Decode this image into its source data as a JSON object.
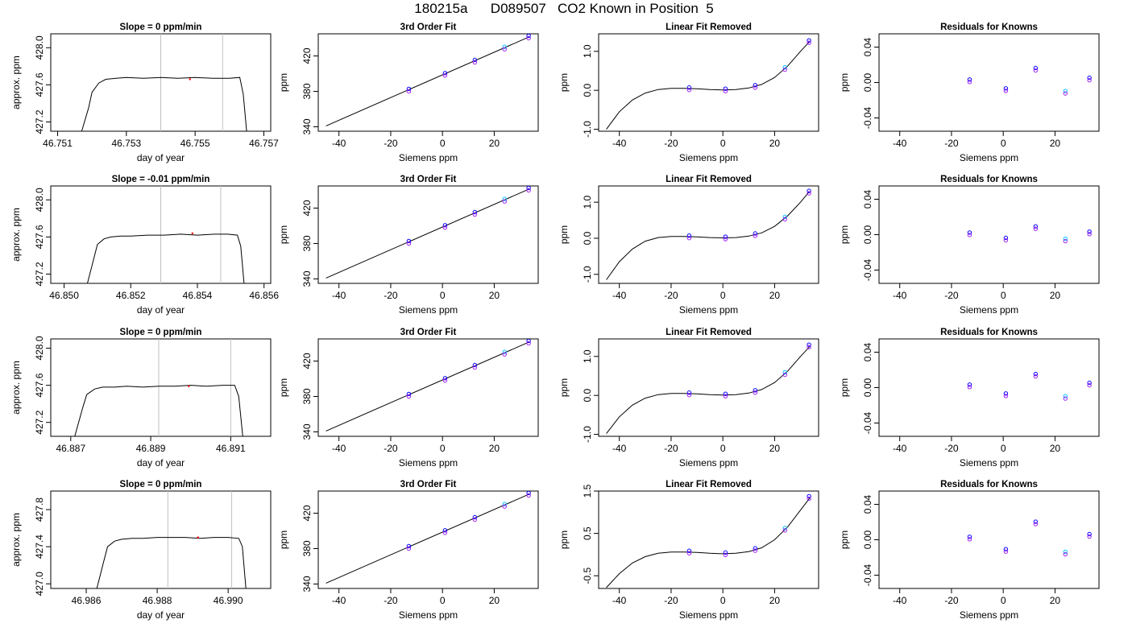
{
  "title": "180215a      D089507   CO2 Known in Position  5",
  "colors": {
    "frame": "#000000",
    "window_line": "#c0c0c0",
    "point_a": "#0000ff",
    "point_b": "#a020f0",
    "point_c": "#00bfff",
    "point_d": "#ff69b4",
    "ref_mark": "#ff0000"
  },
  "chart_data": [
    {
      "type": "line",
      "title": "Slope =  0  ppm/min",
      "xlabel": "day of year",
      "ylabel": "approx. ppm",
      "xlim": [
        46.7508,
        46.7572
      ],
      "ylim": [
        427.1,
        428.15
      ],
      "xticks": [
        "46.751",
        "46.753",
        "46.755",
        "46.757"
      ],
      "yticks": [
        "427.2",
        "427.6",
        "428.0"
      ],
      "window": [
        46.754,
        46.7558
      ],
      "ref_point": [
        46.75485,
        427.66
      ],
      "x": [
        46.7517,
        46.7519,
        46.752,
        46.7522,
        46.7524,
        46.7527,
        46.753,
        46.7535,
        46.754,
        46.7545,
        46.755,
        46.7555,
        46.756,
        46.7563,
        46.7564,
        46.7565
      ],
      "y": [
        427.1,
        427.35,
        427.52,
        427.62,
        427.66,
        427.67,
        427.68,
        427.67,
        427.68,
        427.67,
        427.68,
        427.67,
        427.67,
        427.68,
        427.5,
        427.1
      ]
    },
    {
      "type": "scatter",
      "title": "3rd Order Fit",
      "xlabel": "Siemens ppm",
      "ylabel": "ppm",
      "xlim": [
        -48,
        37
      ],
      "ylim": [
        335,
        445
      ],
      "xticks": [
        -40,
        -20,
        0,
        20
      ],
      "yticks": [
        340,
        380,
        420
      ],
      "fit_x": [
        -45,
        33.5
      ],
      "fit_y": [
        341.0,
        441.5
      ],
      "points_x": [
        -13,
        1,
        12.5,
        24,
        33.3
      ],
      "points_y": [
        381.4,
        399.3,
        414.1,
        428.9,
        441.4
      ]
    },
    {
      "type": "scatter",
      "title": "Linear Fit Removed",
      "xlabel": "Siemens ppm",
      "ylabel": "ppm",
      "xlim": [
        -48,
        37
      ],
      "ylim": [
        -1.05,
        1.45
      ],
      "xticks": [
        -40,
        -20,
        0,
        20
      ],
      "yticks": [
        "-1.0",
        "0.0",
        "1.0"
      ],
      "curve_x": [
        -45,
        -40,
        -35,
        -30,
        -25,
        -20,
        -15,
        -10,
        -5,
        0,
        5,
        10,
        15,
        20,
        25,
        30,
        33.5
      ],
      "curve_y": [
        -1.0,
        -0.55,
        -0.25,
        -0.07,
        0.02,
        0.05,
        0.05,
        0.04,
        0.02,
        0.01,
        0.02,
        0.06,
        0.15,
        0.33,
        0.62,
        1.0,
        1.25
      ],
      "points_x": [
        -13,
        1,
        12.5,
        24,
        33.3
      ],
      "points_y": [
        0.04,
        0.01,
        0.1,
        0.56,
        1.25
      ]
    },
    {
      "type": "scatter",
      "title": "Residuals for Knowns",
      "xlabel": "Siemens ppm",
      "ylabel": "ppm",
      "xlim": [
        -48,
        37
      ],
      "ylim": [
        -0.055,
        0.055
      ],
      "xticks": [
        -40,
        -20,
        0,
        20
      ],
      "yticks": [
        "-0.04",
        "0.00",
        "0.04"
      ],
      "points_x": [
        -13,
        1,
        12.5,
        24,
        33.3
      ],
      "points_y": [
        0.002,
        -0.008,
        0.015,
        -0.011,
        0.004
      ]
    },
    {
      "type": "line",
      "title": "Slope =  -0.01  ppm/min",
      "xlabel": "day of year",
      "ylabel": "approx. ppm",
      "xlim": [
        46.8496,
        46.8562
      ],
      "ylim": [
        427.1,
        428.15
      ],
      "xticks": [
        "46.850",
        "46.852",
        "46.854",
        "46.856"
      ],
      "yticks": [
        "427.2",
        "427.6",
        "428.0"
      ],
      "window": [
        46.8529,
        46.8547
      ],
      "ref_point": [
        46.85385,
        427.64
      ],
      "x": [
        46.8507,
        46.8509,
        46.851,
        46.8512,
        46.8514,
        46.8517,
        46.852,
        46.8525,
        46.853,
        46.8535,
        46.854,
        46.8545,
        46.8549,
        46.8552,
        46.8553,
        46.8554
      ],
      "y": [
        427.1,
        427.38,
        427.52,
        427.58,
        427.6,
        427.61,
        427.61,
        427.62,
        427.62,
        427.63,
        427.62,
        427.63,
        427.63,
        427.62,
        427.5,
        427.1
      ]
    },
    {
      "type": "scatter",
      "title": "3rd Order Fit",
      "xlabel": "Siemens ppm",
      "ylabel": "ppm",
      "xlim": [
        -48,
        37
      ],
      "ylim": [
        335,
        445
      ],
      "xticks": [
        -40,
        -20,
        0,
        20
      ],
      "yticks": [
        340,
        380,
        420
      ],
      "fit_x": [
        -45,
        33.5
      ],
      "fit_y": [
        341.0,
        441.5
      ],
      "points_x": [
        -13,
        1,
        12.5,
        24,
        33.3
      ],
      "points_y": [
        381.4,
        399.3,
        414.1,
        428.9,
        441.4
      ]
    },
    {
      "type": "scatter",
      "title": "Linear Fit Removed",
      "xlabel": "Siemens ppm",
      "ylabel": "ppm",
      "xlim": [
        -48,
        37
      ],
      "ylim": [
        -1.25,
        1.45
      ],
      "xticks": [
        -40,
        -20,
        0,
        20
      ],
      "yticks": [
        "-1.0",
        "0.0",
        "1.0"
      ],
      "curve_x": [
        -45,
        -40,
        -35,
        -30,
        -25,
        -20,
        -15,
        -10,
        -5,
        0,
        5,
        10,
        15,
        20,
        25,
        30,
        33.5
      ],
      "curve_y": [
        -1.15,
        -0.65,
        -0.3,
        -0.08,
        0.02,
        0.05,
        0.05,
        0.04,
        0.02,
        0.01,
        0.02,
        0.06,
        0.15,
        0.33,
        0.62,
        1.0,
        1.3
      ],
      "points_x": [
        -13,
        1,
        12.5,
        24,
        33.3
      ],
      "points_y": [
        0.04,
        0.01,
        0.1,
        0.56,
        1.28
      ]
    },
    {
      "type": "scatter",
      "title": "Residuals for Knowns",
      "xlabel": "Siemens ppm",
      "ylabel": "ppm",
      "xlim": [
        -48,
        37
      ],
      "ylim": [
        -0.055,
        0.055
      ],
      "xticks": [
        -40,
        -20,
        0,
        20
      ],
      "yticks": [
        "-0.04",
        "0.00",
        "0.04"
      ],
      "points_x": [
        -13,
        1,
        12.5,
        24,
        33.3
      ],
      "points_y": [
        0.001,
        -0.005,
        0.008,
        -0.006,
        0.002
      ]
    },
    {
      "type": "line",
      "title": "Slope =  0  ppm/min",
      "xlabel": "day of year",
      "ylabel": "approx. ppm",
      "xlim": [
        46.8865,
        46.892
      ],
      "ylim": [
        427.05,
        428.1
      ],
      "xticks": [
        "46.887",
        "46.889",
        "46.891"
      ],
      "yticks": [
        "427.2",
        "427.6",
        "428.0"
      ],
      "window": [
        46.8892,
        46.891
      ],
      "ref_point": [
        46.88995,
        427.59
      ],
      "x": [
        46.8871,
        46.8873,
        46.8874,
        46.8876,
        46.8878,
        46.8881,
        46.8884,
        46.8888,
        46.8892,
        46.8896,
        46.89,
        46.8904,
        46.8908,
        46.8911,
        46.8912,
        46.8913
      ],
      "y": [
        427.05,
        427.36,
        427.5,
        427.56,
        427.58,
        427.58,
        427.59,
        427.58,
        427.59,
        427.59,
        427.6,
        427.59,
        427.6,
        427.6,
        427.48,
        427.05
      ]
    },
    {
      "type": "scatter",
      "title": "3rd Order Fit",
      "xlabel": "Siemens ppm",
      "ylabel": "ppm",
      "xlim": [
        -48,
        37
      ],
      "ylim": [
        335,
        445
      ],
      "xticks": [
        -40,
        -20,
        0,
        20
      ],
      "yticks": [
        340,
        380,
        420
      ],
      "fit_x": [
        -45,
        33.5
      ],
      "fit_y": [
        341.0,
        441.5
      ],
      "points_x": [
        -13,
        1,
        12.5,
        24,
        33.3
      ],
      "points_y": [
        381.4,
        399.3,
        414.1,
        428.9,
        441.4
      ]
    },
    {
      "type": "scatter",
      "title": "Linear Fit Removed",
      "xlabel": "Siemens ppm",
      "ylabel": "ppm",
      "xlim": [
        -48,
        37
      ],
      "ylim": [
        -1.05,
        1.45
      ],
      "xticks": [
        -40,
        -20,
        0,
        20
      ],
      "yticks": [
        "-1.0",
        "0.0",
        "1.0"
      ],
      "curve_x": [
        -45,
        -40,
        -35,
        -30,
        -25,
        -20,
        -15,
        -10,
        -5,
        0,
        5,
        10,
        15,
        20,
        25,
        30,
        33.5
      ],
      "curve_y": [
        -0.98,
        -0.55,
        -0.25,
        -0.07,
        0.02,
        0.05,
        0.05,
        0.04,
        0.02,
        0.01,
        0.02,
        0.06,
        0.15,
        0.33,
        0.62,
        1.0,
        1.25
      ],
      "points_x": [
        -13,
        1,
        12.5,
        24,
        33.3
      ],
      "points_y": [
        0.04,
        0.01,
        0.1,
        0.56,
        1.27
      ]
    },
    {
      "type": "scatter",
      "title": "Residuals for Knowns",
      "xlabel": "Siemens ppm",
      "ylabel": "ppm",
      "xlim": [
        -48,
        37
      ],
      "ylim": [
        -0.055,
        0.055
      ],
      "xticks": [
        -40,
        -20,
        0,
        20
      ],
      "yticks": [
        "-0.04",
        "0.00",
        "0.04"
      ],
      "points_x": [
        -13,
        1,
        12.5,
        24,
        33.3
      ],
      "points_y": [
        0.002,
        -0.008,
        0.014,
        -0.011,
        0.004
      ]
    },
    {
      "type": "line",
      "title": "Slope =  0  ppm/min",
      "xlabel": "day of year",
      "ylabel": "approx. ppm",
      "xlim": [
        46.985,
        46.9912
      ],
      "ylim": [
        426.95,
        428.0
      ],
      "xticks": [
        "46.986",
        "46.988",
        "46.990"
      ],
      "yticks": [
        "427.0",
        "427.4",
        "427.8"
      ],
      "window": [
        46.9883,
        46.9901
      ],
      "ref_point": [
        46.98915,
        427.5
      ],
      "x": [
        46.9863,
        46.9865,
        46.9866,
        46.9868,
        46.987,
        46.9873,
        46.9876,
        46.988,
        46.9884,
        46.9888,
        46.9892,
        46.9896,
        46.99,
        46.9903,
        46.9904,
        46.9905
      ],
      "y": [
        426.95,
        427.25,
        427.4,
        427.46,
        427.48,
        427.49,
        427.49,
        427.5,
        427.5,
        427.5,
        427.49,
        427.5,
        427.5,
        427.49,
        427.4,
        426.95
      ]
    },
    {
      "type": "scatter",
      "title": "3rd Order Fit",
      "xlabel": "Siemens ppm",
      "ylabel": "ppm",
      "xlim": [
        -48,
        37
      ],
      "ylim": [
        335,
        445
      ],
      "xticks": [
        -40,
        -20,
        0,
        20
      ],
      "yticks": [
        340,
        380,
        420
      ],
      "fit_x": [
        -45,
        33.5
      ],
      "fit_y": [
        341.0,
        441.5
      ],
      "points_x": [
        -13,
        1,
        12.5,
        24,
        33.3
      ],
      "points_y": [
        381.4,
        399.3,
        414.1,
        428.9,
        441.4
      ]
    },
    {
      "type": "scatter",
      "title": "Linear Fit Removed",
      "xlabel": "Siemens ppm",
      "ylabel": "ppm",
      "xlim": [
        -48,
        37
      ],
      "ylim": [
        -0.8,
        1.5
      ],
      "xticks": [
        -40,
        -20,
        0,
        20
      ],
      "yticks": [
        "-0.5",
        "0.5",
        "1.5"
      ],
      "curve_x": [
        -45,
        -40,
        -35,
        -30,
        -25,
        -20,
        -15,
        -10,
        -5,
        0,
        5,
        10,
        15,
        20,
        25,
        30,
        33.5
      ],
      "curve_y": [
        -0.78,
        -0.45,
        -0.2,
        -0.05,
        0.03,
        0.06,
        0.06,
        0.05,
        0.03,
        0.02,
        0.03,
        0.07,
        0.16,
        0.35,
        0.65,
        1.05,
        1.33
      ],
      "points_x": [
        -13,
        1,
        12.5,
        24,
        33.3
      ],
      "points_y": [
        0.06,
        0.02,
        0.12,
        0.6,
        1.35
      ]
    },
    {
      "type": "scatter",
      "title": "Residuals for Knowns",
      "xlabel": "Siemens ppm",
      "ylabel": "ppm",
      "xlim": [
        -48,
        37
      ],
      "ylim": [
        -0.055,
        0.055
      ],
      "xticks": [
        -40,
        -20,
        0,
        20
      ],
      "yticks": [
        "-0.04",
        "0.00",
        "0.04"
      ],
      "points_x": [
        -13,
        1,
        12.5,
        24,
        33.3
      ],
      "points_y": [
        0.002,
        -0.012,
        0.019,
        -0.015,
        0.005
      ]
    }
  ]
}
